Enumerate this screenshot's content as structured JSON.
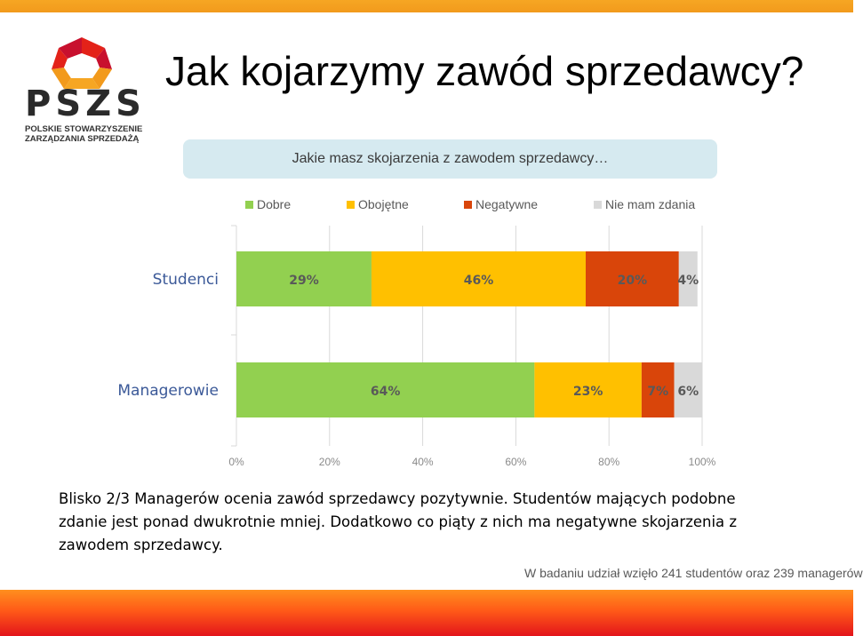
{
  "title": "Jak kojarzymy zawód sprzedawcy?",
  "logo": {
    "name": "PSZS",
    "subtitle_line1": "POLSKIE STOWARZYSZENIE",
    "subtitle_line2": "ZARZĄDZANIA SPRZEDAŻĄ"
  },
  "question": "Jakie masz skojarzenia z zawodem sprzedawcy…",
  "chart_data": {
    "type": "bar",
    "orientation": "horizontal",
    "stacked": true,
    "categories": [
      "Studenci",
      "Managerowie"
    ],
    "series": [
      {
        "name": "Dobre",
        "color": "#92d050",
        "values": [
          29,
          64
        ],
        "labels": [
          "29%",
          "64%"
        ]
      },
      {
        "name": "Obojętne",
        "color": "#ffc000",
        "values": [
          46,
          23
        ],
        "labels": [
          "46%",
          "23%"
        ]
      },
      {
        "name": "Negatywne",
        "color": "#d9450a",
        "values": [
          20,
          7
        ],
        "labels": [
          "20%",
          "7%"
        ]
      },
      {
        "name": "Nie mam zdania",
        "color": "#d9d9d9",
        "values": [
          4,
          6
        ],
        "labels": [
          "4%",
          "6%"
        ]
      }
    ],
    "x_ticks": [
      "0%",
      "20%",
      "40%",
      "60%",
      "80%",
      "100%"
    ],
    "xlim": [
      0,
      100
    ],
    "legend_position": "top",
    "grid": true
  },
  "caption_line1": "Blisko 2/3 Managerów ocenia zawód sprzedawcy pozytywnie. Studentów mających podobne",
  "caption_line2": "zdanie jest ponad dwukrotnie mniej. Dodatkowo co piąty z nich ma negatywne skojarzenia z",
  "caption_line3": "zawodem sprzedawcy.",
  "footnote": "W badaniu udział wzięło 241 studentów oraz 239 managerów",
  "colors": {
    "top_bar": "#f29a1c",
    "bottom_bar_top": "#ff8f1e",
    "bottom_bar_bottom": "#e3141b",
    "question_box": "#d6eaf0",
    "category_label": "#3b5998"
  }
}
